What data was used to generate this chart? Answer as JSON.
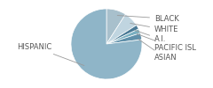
{
  "labels": [
    "BLACK",
    "WHITE",
    "A.I.",
    "PACIFIC ISL",
    "ASIAN",
    "HISPANIC"
  ],
  "values": [
    9,
    7,
    2,
    2,
    3,
    77
  ],
  "colors": [
    "#a8c0cc",
    "#c0d5e0",
    "#4a7a96",
    "#7aafc0",
    "#6090aa",
    "#8fb5c8"
  ],
  "startangle": 90,
  "label_fontsize": 6.0,
  "label_color": "#555555",
  "figsize": [
    2.4,
    1.0
  ],
  "dpi": 100
}
